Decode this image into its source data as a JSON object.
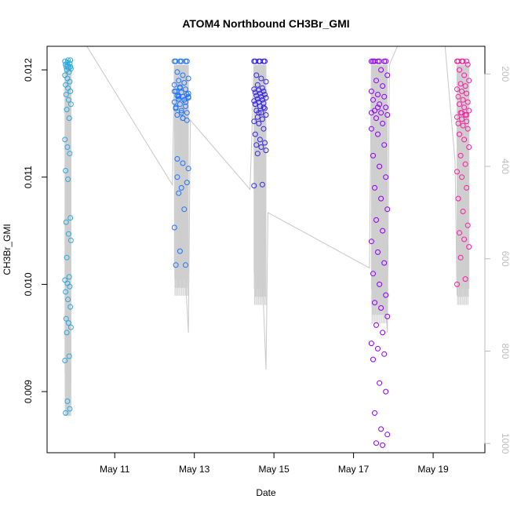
{
  "chart_data": {
    "type": "scatter",
    "title": "ATOM4 Northbound CH3Br_GMI",
    "xlabel": "Date",
    "ylabel": "CH3Br_GMI",
    "x_ticks": [
      "May 11",
      "May 13",
      "May 15",
      "May 17",
      "May 19"
    ],
    "x_tick_days": [
      11,
      13,
      15,
      17,
      19
    ],
    "xlim": [
      9.3,
      20.3
    ],
    "ylim": [
      0.00843,
      0.01222
    ],
    "y_ticks": [
      0.009,
      0.01,
      0.011,
      0.012
    ],
    "y_tick_labels": [
      "0.009",
      "0.010",
      "0.011",
      "0.012"
    ],
    "y2lim": [
      1020,
      140
    ],
    "y2_ticks": [
      200,
      400,
      600,
      800,
      1000
    ],
    "y2_tick_labels": [
      "200",
      "400",
      "600",
      "800",
      "1000"
    ],
    "y2_color": "#bdbdbd",
    "grid": false,
    "color_gradient": [
      "#29b6f6",
      "#1565ff",
      "#3b1fe8",
      "#9b00f0",
      "#ff1493"
    ],
    "series": [
      {
        "flight": 1,
        "day_start": 9.75,
        "day_end": 9.9,
        "color": "#29a8e0",
        "values": [
          0.01208,
          0.01207,
          0.01206,
          0.01205,
          0.01204,
          0.01203,
          0.01203,
          0.01202,
          0.01201,
          0.012,
          0.01198,
          0.01195,
          0.01192,
          0.01189,
          0.01186,
          0.01183,
          0.0118,
          0.01177,
          0.01172,
          0.01168,
          0.01163,
          0.01155,
          0.01135,
          0.01128,
          0.01122,
          0.01106,
          0.01098,
          0.01062,
          0.01058,
          0.01047,
          0.01041,
          0.01025,
          0.01007,
          0.01004,
          0.01001,
          0.00998,
          0.00993,
          0.00986,
          0.00979,
          0.00968,
          0.00964,
          0.0096,
          0.00955,
          0.00933,
          0.00929,
          0.00891,
          0.00884,
          0.0088,
          0.01209,
          0.01209
        ],
        "pressure": [
          180,
          190,
          200,
          205,
          210,
          220,
          240,
          250,
          260,
          270,
          300,
          320,
          340,
          360,
          380,
          400,
          420,
          450,
          480,
          510,
          540,
          560,
          600,
          620,
          640,
          660,
          680,
          700,
          720,
          740,
          760,
          780,
          800,
          815,
          830,
          845,
          860,
          870,
          880,
          890,
          900,
          910,
          915,
          920,
          925,
          930,
          935,
          940,
          180,
          185
        ]
      },
      {
        "flight": 2,
        "day_start": 12.5,
        "day_end": 12.85,
        "color": "#1a73ff",
        "values": [
          0.01208,
          0.01208,
          0.01208,
          0.01208,
          0.01208,
          0.01208,
          0.01198,
          0.01195,
          0.01192,
          0.0119,
          0.01188,
          0.01186,
          0.01184,
          0.01182,
          0.0118,
          0.01179,
          0.01177,
          0.01176,
          0.01175,
          0.01174,
          0.01173,
          0.01172,
          0.0117,
          0.01168,
          0.01166,
          0.01164,
          0.01162,
          0.0116,
          0.01158,
          0.01155,
          0.01178,
          0.01175,
          0.01172,
          0.0118,
          0.01183,
          0.0117,
          0.01165,
          0.0116,
          0.01153,
          0.01117,
          0.01113,
          0.01108,
          0.01085,
          0.0107,
          0.01053,
          0.01031,
          0.01018,
          0.01018,
          0.0109,
          0.01095,
          0.011,
          0.01155,
          0.01175,
          0.01176
        ],
        "pressure": [
          180,
          180,
          180,
          180,
          180,
          180,
          200,
          210,
          220,
          230,
          240,
          250,
          260,
          270,
          280,
          290,
          300,
          310,
          320,
          330,
          340,
          350,
          360,
          370,
          380,
          390,
          400,
          410,
          420,
          430,
          250,
          260,
          270,
          240,
          235,
          300,
          320,
          340,
          360,
          420,
          440,
          460,
          520,
          560,
          600,
          640,
          660,
          680,
          500,
          480,
          460,
          300,
          250,
          260
        ]
      },
      {
        "flight": 3,
        "day_start": 14.5,
        "day_end": 14.8,
        "color": "#3323e6",
        "values": [
          0.01208,
          0.01208,
          0.01208,
          0.01208,
          0.01208,
          0.01208,
          0.01195,
          0.01192,
          0.01189,
          0.01186,
          0.01183,
          0.01182,
          0.01181,
          0.0118,
          0.01179,
          0.01178,
          0.01177,
          0.01176,
          0.01175,
          0.01174,
          0.01173,
          0.01172,
          0.01171,
          0.0117,
          0.01169,
          0.01168,
          0.01166,
          0.01164,
          0.01162,
          0.0116,
          0.01158,
          0.01156,
          0.01154,
          0.01152,
          0.0115,
          0.01145,
          0.0114,
          0.01135,
          0.01132,
          0.0113,
          0.01128,
          0.01125,
          0.01122,
          0.01093,
          0.01092,
          0.0116,
          0.01165,
          0.01168
        ],
        "pressure": [
          180,
          180,
          180,
          180,
          180,
          180,
          200,
          210,
          220,
          230,
          240,
          250,
          260,
          270,
          280,
          290,
          300,
          310,
          320,
          330,
          340,
          350,
          360,
          370,
          380,
          390,
          400,
          410,
          420,
          430,
          440,
          450,
          460,
          470,
          480,
          500,
          520,
          540,
          560,
          580,
          600,
          620,
          640,
          680,
          700,
          320,
          310,
          300
        ]
      },
      {
        "flight": 4,
        "day_start": 17.45,
        "day_end": 17.85,
        "color": "#8a00f0",
        "values": [
          0.01208,
          0.01208,
          0.01208,
          0.01208,
          0.01208,
          0.01208,
          0.01208,
          0.012,
          0.01195,
          0.0119,
          0.01185,
          0.0118,
          0.01177,
          0.01175,
          0.01172,
          0.01168,
          0.01165,
          0.01162,
          0.0116,
          0.01158,
          0.01155,
          0.0115,
          0.01145,
          0.0114,
          0.0113,
          0.0112,
          0.0111,
          0.011,
          0.0109,
          0.0108,
          0.0107,
          0.0106,
          0.0105,
          0.0104,
          0.0103,
          0.0102,
          0.0101,
          0.01,
          0.0099,
          0.00983,
          0.00978,
          0.0097,
          0.00962,
          0.00955,
          0.00945,
          0.0094,
          0.00935,
          0.0093,
          0.00908,
          0.009,
          0.0088,
          0.00865,
          0.0086,
          0.00852,
          0.0085,
          0.0116,
          0.01165
        ],
        "pressure": [
          180,
          180,
          180,
          180,
          180,
          180,
          180,
          200,
          210,
          220,
          230,
          240,
          250,
          260,
          270,
          280,
          290,
          300,
          310,
          320,
          330,
          340,
          350,
          360,
          370,
          380,
          390,
          400,
          410,
          420,
          430,
          440,
          450,
          460,
          470,
          480,
          490,
          500,
          510,
          520,
          530,
          540,
          550,
          560,
          570,
          580,
          590,
          600,
          620,
          640,
          660,
          680,
          700,
          720,
          740,
          300,
          290
        ]
      },
      {
        "flight": 5,
        "day_start": 19.6,
        "day_end": 19.9,
        "color": "#ff1aa3",
        "values": [
          0.01208,
          0.01208,
          0.01208,
          0.01208,
          0.01208,
          0.01205,
          0.012,
          0.01195,
          0.0119,
          0.01187,
          0.01185,
          0.01182,
          0.0118,
          0.01178,
          0.01175,
          0.01172,
          0.0117,
          0.01168,
          0.01165,
          0.01162,
          0.0116,
          0.01158,
          0.01156,
          0.01154,
          0.01152,
          0.0115,
          0.01148,
          0.01145,
          0.0114,
          0.01135,
          0.01128,
          0.0112,
          0.01112,
          0.01105,
          0.011,
          0.0109,
          0.0108,
          0.01068,
          0.01055,
          0.01048,
          0.01042,
          0.01035,
          0.01025,
          0.01005,
          0.01,
          0.0116,
          0.01158
        ],
        "pressure": [
          180,
          180,
          180,
          180,
          180,
          190,
          200,
          210,
          220,
          230,
          240,
          250,
          260,
          270,
          280,
          290,
          300,
          310,
          320,
          330,
          340,
          350,
          360,
          370,
          380,
          390,
          400,
          410,
          420,
          430,
          440,
          450,
          460,
          470,
          480,
          500,
          520,
          540,
          560,
          580,
          600,
          620,
          640,
          680,
          700,
          360,
          370
        ]
      }
    ],
    "altitude_track_segments": [
      [
        [
          9.75,
          180
        ],
        [
          9.82,
          820
        ],
        [
          9.9,
          180
        ]
      ],
      [
        [
          10.3,
          140
        ],
        [
          12.45,
          440
        ],
        [
          12.5,
          180
        ],
        [
          12.85,
          760
        ],
        [
          12.9,
          300
        ],
        [
          14.4,
          450
        ],
        [
          14.5,
          180
        ],
        [
          14.8,
          840
        ],
        [
          14.85,
          500
        ],
        [
          17.4,
          620
        ],
        [
          17.45,
          180
        ],
        [
          17.85,
          760
        ],
        [
          17.9,
          180
        ],
        [
          18.1,
          140
        ]
      ],
      [
        [
          19.3,
          140
        ],
        [
          19.55,
          390
        ],
        [
          19.6,
          680
        ],
        [
          19.9,
          180
        ]
      ]
    ]
  }
}
